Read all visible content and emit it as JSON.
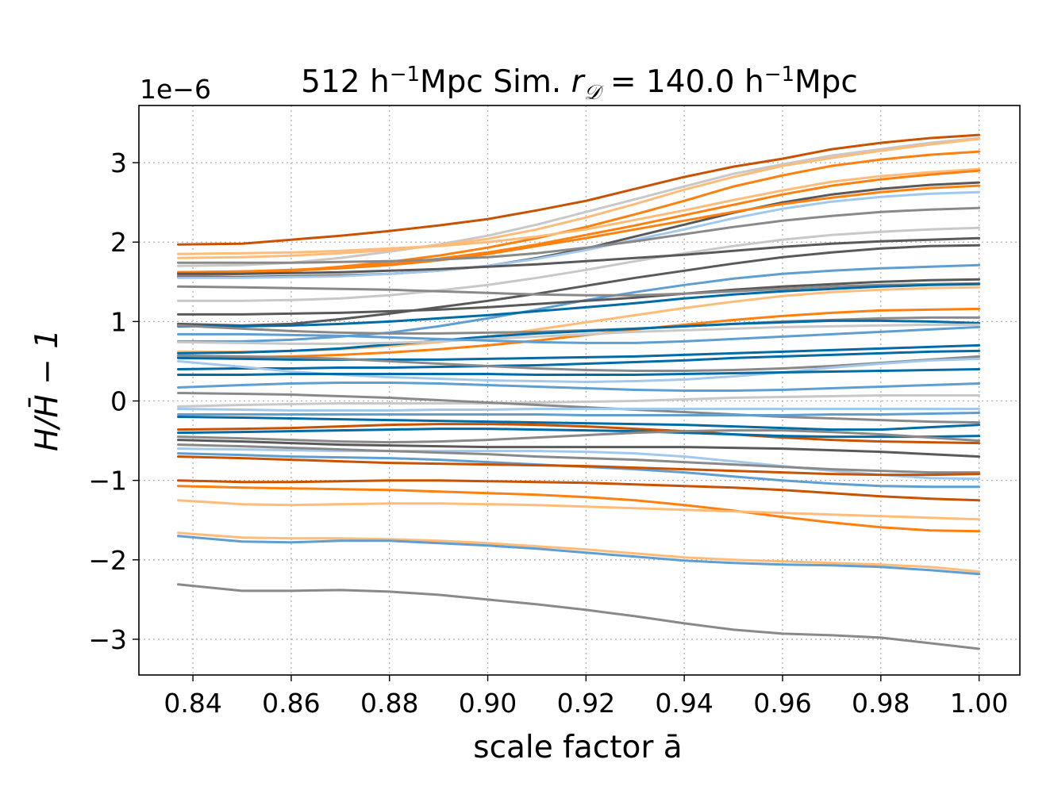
{
  "chart_data": {
    "type": "line",
    "title": {
      "prefix": "512 h",
      "sup1": "−1",
      "mid": "Mpc Sim. ",
      "r": "r",
      "sub": "𝒟",
      "eq": " = 140.0 h",
      "sup2": "−1",
      "suffix": "Mpc"
    },
    "xlabel": "scale factor ā",
    "ylabel": "H/H̄ − 1",
    "y_offset_label": "1e−6",
    "xlim": [
      0.829,
      1.0083
    ],
    "ylim": [
      -3.45,
      3.72
    ],
    "grid": true,
    "x": [
      0.837,
      0.85,
      0.86,
      0.87,
      0.88,
      0.89,
      0.9,
      0.91,
      0.92,
      0.93,
      0.94,
      0.95,
      0.96,
      0.97,
      0.98,
      0.99,
      1.0
    ],
    "xticks": [
      {
        "v": 0.84,
        "label": "0.84"
      },
      {
        "v": 0.86,
        "label": "0.86"
      },
      {
        "v": 0.88,
        "label": "0.88"
      },
      {
        "v": 0.9,
        "label": "0.90"
      },
      {
        "v": 0.92,
        "label": "0.92"
      },
      {
        "v": 0.94,
        "label": "0.94"
      },
      {
        "v": 0.96,
        "label": "0.96"
      },
      {
        "v": 0.98,
        "label": "0.98"
      },
      {
        "v": 1.0,
        "label": "1.00"
      }
    ],
    "yticks": [
      {
        "v": -3,
        "label": "−3"
      },
      {
        "v": -2,
        "label": "−2"
      },
      {
        "v": -1,
        "label": "−1"
      },
      {
        "v": 0,
        "label": "0"
      },
      {
        "v": 1,
        "label": "1"
      },
      {
        "v": 2,
        "label": "2"
      },
      {
        "v": 3,
        "label": "3"
      }
    ],
    "series": [
      {
        "name": "s01",
        "color": "#c85200",
        "values": [
          1.97,
          1.98,
          2.03,
          2.08,
          2.14,
          2.21,
          2.29,
          2.4,
          2.52,
          2.67,
          2.82,
          2.95,
          3.05,
          3.17,
          3.25,
          3.31,
          3.35
        ]
      },
      {
        "name": "s02",
        "color": "#c8c8c8",
        "values": [
          1.7,
          1.71,
          1.74,
          1.8,
          1.88,
          1.97,
          2.08,
          2.22,
          2.38,
          2.54,
          2.7,
          2.86,
          2.98,
          3.09,
          3.17,
          3.25,
          3.31
        ]
      },
      {
        "name": "s03",
        "color": "#ffbc79",
        "values": [
          1.8,
          1.81,
          1.83,
          1.86,
          1.9,
          1.96,
          2.04,
          2.16,
          2.31,
          2.48,
          2.66,
          2.82,
          2.96,
          3.06,
          3.15,
          3.23,
          3.3
        ]
      },
      {
        "name": "s04",
        "color": "#ff800e",
        "values": [
          1.58,
          1.6,
          1.64,
          1.69,
          1.75,
          1.83,
          1.93,
          2.05,
          2.19,
          2.35,
          2.52,
          2.7,
          2.84,
          2.96,
          3.04,
          3.1,
          3.14
        ]
      },
      {
        "name": "s05",
        "color": "#ffbc79",
        "values": [
          1.85,
          1.86,
          1.87,
          1.89,
          1.92,
          1.95,
          2.0,
          2.07,
          2.16,
          2.28,
          2.4,
          2.53,
          2.65,
          2.76,
          2.83,
          2.88,
          2.92
        ]
      },
      {
        "name": "s06",
        "color": "#ff800e",
        "values": [
          1.62,
          1.63,
          1.65,
          1.68,
          1.72,
          1.79,
          1.87,
          1.97,
          2.09,
          2.21,
          2.34,
          2.47,
          2.6,
          2.71,
          2.79,
          2.85,
          2.9
        ]
      },
      {
        "name": "s07",
        "color": "#595959",
        "values": [
          1.56,
          1.56,
          1.57,
          1.58,
          1.6,
          1.64,
          1.7,
          1.8,
          1.92,
          2.07,
          2.22,
          2.37,
          2.5,
          2.6,
          2.67,
          2.72,
          2.75
        ]
      },
      {
        "name": "s08",
        "color": "#ff800e",
        "values": [
          1.62,
          1.63,
          1.64,
          1.67,
          1.71,
          1.77,
          1.85,
          1.95,
          2.05,
          2.16,
          2.27,
          2.38,
          2.48,
          2.56,
          2.63,
          2.68,
          2.71
        ]
      },
      {
        "name": "s09",
        "color": "#a2c8ec",
        "values": [
          1.55,
          1.55,
          1.56,
          1.57,
          1.6,
          1.64,
          1.7,
          1.79,
          1.9,
          2.03,
          2.16,
          2.3,
          2.42,
          2.51,
          2.57,
          2.61,
          2.63
        ]
      },
      {
        "name": "s10",
        "color": "#898989",
        "values": [
          1.74,
          1.74,
          1.74,
          1.75,
          1.76,
          1.78,
          1.81,
          1.86,
          1.93,
          2.01,
          2.1,
          2.19,
          2.27,
          2.33,
          2.38,
          2.41,
          2.43
        ]
      },
      {
        "name": "s11",
        "color": "#c8c8c8",
        "values": [
          1.26,
          1.26,
          1.27,
          1.29,
          1.33,
          1.39,
          1.46,
          1.55,
          1.65,
          1.76,
          1.86,
          1.95,
          2.03,
          2.09,
          2.13,
          2.16,
          2.18
        ]
      },
      {
        "name": "s12",
        "color": "#595959",
        "values": [
          1.6,
          1.6,
          1.61,
          1.62,
          1.64,
          1.66,
          1.69,
          1.72,
          1.76,
          1.8,
          1.84,
          1.89,
          1.94,
          1.98,
          2.01,
          2.03,
          2.05
        ]
      },
      {
        "name": "s13",
        "color": "#595959",
        "values": [
          0.97,
          0.95,
          0.97,
          1.03,
          1.1,
          1.18,
          1.26,
          1.35,
          1.45,
          1.55,
          1.64,
          1.73,
          1.81,
          1.87,
          1.92,
          1.95,
          1.96
        ]
      },
      {
        "name": "s14",
        "color": "#5f9ed1",
        "values": [
          0.75,
          0.75,
          0.77,
          0.81,
          0.86,
          0.94,
          1.04,
          1.15,
          1.27,
          1.37,
          1.46,
          1.54,
          1.6,
          1.64,
          1.67,
          1.69,
          1.71
        ]
      },
      {
        "name": "s15",
        "color": "#595959",
        "values": [
          1.09,
          1.09,
          1.1,
          1.11,
          1.13,
          1.15,
          1.18,
          1.22,
          1.26,
          1.3,
          1.35,
          1.4,
          1.44,
          1.47,
          1.5,
          1.52,
          1.53
        ]
      },
      {
        "name": "s16",
        "color": "#898989",
        "values": [
          1.44,
          1.43,
          1.42,
          1.41,
          1.4,
          1.38,
          1.36,
          1.34,
          1.33,
          1.33,
          1.35,
          1.38,
          1.41,
          1.44,
          1.46,
          1.47,
          1.48
        ]
      },
      {
        "name": "s17",
        "color": "#006ba4",
        "values": [
          0.94,
          0.94,
          0.95,
          0.97,
          1.0,
          1.04,
          1.08,
          1.13,
          1.18,
          1.23,
          1.29,
          1.34,
          1.38,
          1.41,
          1.44,
          1.46,
          1.47
        ]
      },
      {
        "name": "s18",
        "color": "#ffbc79",
        "values": [
          0.62,
          0.62,
          0.63,
          0.65,
          0.69,
          0.74,
          0.81,
          0.9,
          0.99,
          1.08,
          1.17,
          1.25,
          1.32,
          1.37,
          1.4,
          1.42,
          1.43
        ]
      },
      {
        "name": "s19",
        "color": "#ff800e",
        "values": [
          0.55,
          0.55,
          0.56,
          0.58,
          0.61,
          0.65,
          0.7,
          0.76,
          0.83,
          0.9,
          0.96,
          1.02,
          1.07,
          1.11,
          1.14,
          1.15,
          1.16
        ]
      },
      {
        "name": "s20",
        "color": "#898989",
        "values": [
          0.95,
          0.91,
          0.88,
          0.86,
          0.85,
          0.85,
          0.86,
          0.87,
          0.89,
          0.91,
          0.94,
          0.97,
          1.0,
          1.02,
          1.04,
          1.05,
          1.05
        ]
      },
      {
        "name": "s21",
        "color": "#006ba4",
        "values": [
          0.6,
          0.61,
          0.63,
          0.66,
          0.71,
          0.76,
          0.81,
          0.85,
          0.88,
          0.91,
          0.94,
          0.97,
          0.99,
          1.01,
          1.01,
          1.0,
          0.98
        ]
      },
      {
        "name": "s22",
        "color": "#c8c8c8",
        "values": [
          0.74,
          0.73,
          0.72,
          0.72,
          0.73,
          0.75,
          0.78,
          0.81,
          0.84,
          0.87,
          0.89,
          0.91,
          0.93,
          0.94,
          0.95,
          0.96,
          0.96
        ]
      },
      {
        "name": "s23",
        "color": "#5f9ed1",
        "values": [
          0.84,
          0.84,
          0.83,
          0.82,
          0.8,
          0.78,
          0.76,
          0.74,
          0.73,
          0.73,
          0.75,
          0.78,
          0.81,
          0.84,
          0.87,
          0.9,
          0.93
        ]
      },
      {
        "name": "s24",
        "color": "#006ba4",
        "values": [
          0.54,
          0.53,
          0.52,
          0.52,
          0.52,
          0.52,
          0.53,
          0.54,
          0.55,
          0.56,
          0.58,
          0.6,
          0.62,
          0.64,
          0.66,
          0.68,
          0.7
        ]
      },
      {
        "name": "s25",
        "color": "#006ba4",
        "values": [
          0.4,
          0.41,
          0.41,
          0.42,
          0.42,
          0.43,
          0.44,
          0.45,
          0.47,
          0.49,
          0.51,
          0.54,
          0.56,
          0.58,
          0.6,
          0.62,
          0.63
        ]
      },
      {
        "name": "s26",
        "color": "#898989",
        "values": [
          0.57,
          0.56,
          0.55,
          0.53,
          0.5,
          0.47,
          0.44,
          0.41,
          0.39,
          0.38,
          0.38,
          0.39,
          0.41,
          0.44,
          0.48,
          0.52,
          0.56
        ]
      },
      {
        "name": "s27",
        "color": "#a2c8ec",
        "values": [
          0.5,
          0.43,
          0.37,
          0.33,
          0.3,
          0.28,
          0.26,
          0.25,
          0.24,
          0.25,
          0.27,
          0.31,
          0.36,
          0.42,
          0.47,
          0.51,
          0.53
        ]
      },
      {
        "name": "s28",
        "color": "#006ba4",
        "values": [
          0.33,
          0.33,
          0.34,
          0.34,
          0.34,
          0.34,
          0.34,
          0.33,
          0.33,
          0.33,
          0.34,
          0.35,
          0.36,
          0.37,
          0.38,
          0.39,
          0.4
        ]
      },
      {
        "name": "s29",
        "color": "#5f9ed1",
        "values": [
          0.17,
          0.2,
          0.22,
          0.23,
          0.23,
          0.22,
          0.2,
          0.18,
          0.16,
          0.14,
          0.13,
          0.13,
          0.14,
          0.16,
          0.18,
          0.2,
          0.22
        ]
      },
      {
        "name": "s30",
        "color": "#c8c8c8",
        "values": [
          -0.07,
          -0.05,
          -0.04,
          -0.03,
          -0.03,
          -0.03,
          -0.03,
          -0.02,
          -0.01,
          0.0,
          0.02,
          0.04,
          0.05,
          0.06,
          0.07,
          0.07,
          0.07
        ]
      },
      {
        "name": "s31",
        "color": "#898989",
        "values": [
          0.1,
          0.09,
          0.08,
          0.06,
          0.04,
          0.01,
          -0.02,
          -0.05,
          -0.08,
          -0.11,
          -0.14,
          -0.17,
          -0.2,
          -0.22,
          -0.24,
          -0.26,
          -0.27
        ]
      },
      {
        "name": "s32",
        "color": "#a2c8ec",
        "values": [
          -0.1,
          -0.11,
          -0.12,
          -0.12,
          -0.12,
          -0.11,
          -0.11,
          -0.1,
          -0.1,
          -0.1,
          -0.1,
          -0.1,
          -0.1,
          -0.1,
          -0.1,
          -0.1,
          -0.1
        ]
      },
      {
        "name": "s33",
        "color": "#5f9ed1",
        "values": [
          -0.17,
          -0.17,
          -0.17,
          -0.17,
          -0.17,
          -0.17,
          -0.17,
          -0.17,
          -0.18,
          -0.18,
          -0.18,
          -0.18,
          -0.18,
          -0.17,
          -0.17,
          -0.16,
          -0.15
        ]
      },
      {
        "name": "s34",
        "color": "#006ba4",
        "values": [
          -0.2,
          -0.21,
          -0.22,
          -0.23,
          -0.24,
          -0.25,
          -0.26,
          -0.27,
          -0.28,
          -0.29,
          -0.3,
          -0.32,
          -0.34,
          -0.36,
          -0.36,
          -0.33,
          -0.3
        ]
      },
      {
        "name": "s35",
        "color": "#c85200",
        "values": [
          -0.36,
          -0.35,
          -0.34,
          -0.32,
          -0.3,
          -0.29,
          -0.29,
          -0.3,
          -0.32,
          -0.35,
          -0.38,
          -0.42,
          -0.46,
          -0.49,
          -0.51,
          -0.52,
          -0.53
        ]
      },
      {
        "name": "s36",
        "color": "#006ba4",
        "values": [
          -0.4,
          -0.39,
          -0.38,
          -0.37,
          -0.36,
          -0.35,
          -0.35,
          -0.36,
          -0.37,
          -0.38,
          -0.4,
          -0.42,
          -0.44,
          -0.45,
          -0.45,
          -0.45,
          -0.44
        ]
      },
      {
        "name": "s37",
        "color": "#898989",
        "values": [
          -0.45,
          -0.47,
          -0.49,
          -0.51,
          -0.52,
          -0.51,
          -0.49,
          -0.46,
          -0.43,
          -0.4,
          -0.38,
          -0.37,
          -0.37,
          -0.39,
          -0.42,
          -0.46,
          -0.5
        ]
      },
      {
        "name": "s38",
        "color": "#595959",
        "values": [
          -0.49,
          -0.51,
          -0.53,
          -0.55,
          -0.56,
          -0.57,
          -0.58,
          -0.58,
          -0.58,
          -0.58,
          -0.58,
          -0.59,
          -0.6,
          -0.62,
          -0.64,
          -0.67,
          -0.7
        ]
      },
      {
        "name": "s39",
        "color": "#a2c8ec",
        "values": [
          -0.6,
          -0.61,
          -0.62,
          -0.63,
          -0.63,
          -0.63,
          -0.63,
          -0.63,
          -0.64,
          -0.66,
          -0.7,
          -0.76,
          -0.82,
          -0.88,
          -0.93,
          -0.97,
          -0.98
        ]
      },
      {
        "name": "s40",
        "color": "#898989",
        "values": [
          -0.55,
          -0.57,
          -0.59,
          -0.61,
          -0.63,
          -0.65,
          -0.67,
          -0.7,
          -0.72,
          -0.74,
          -0.77,
          -0.8,
          -0.83,
          -0.86,
          -0.88,
          -0.9,
          -0.9
        ]
      },
      {
        "name": "s41",
        "color": "#5f9ed1",
        "values": [
          -0.66,
          -0.68,
          -0.7,
          -0.71,
          -0.72,
          -0.74,
          -0.77,
          -0.8,
          -0.83,
          -0.86,
          -0.9,
          -0.95,
          -1.0,
          -1.04,
          -1.07,
          -1.08,
          -1.08
        ]
      },
      {
        "name": "s42",
        "color": "#c85200",
        "values": [
          -0.7,
          -0.72,
          -0.74,
          -0.76,
          -0.78,
          -0.79,
          -0.8,
          -0.81,
          -0.82,
          -0.84,
          -0.86,
          -0.88,
          -0.9,
          -0.92,
          -0.93,
          -0.93,
          -0.92
        ]
      },
      {
        "name": "s43",
        "color": "#c85200",
        "values": [
          -1.0,
          -1.02,
          -1.02,
          -1.01,
          -1.0,
          -1.0,
          -1.01,
          -1.02,
          -1.03,
          -1.05,
          -1.07,
          -1.09,
          -1.12,
          -1.16,
          -1.2,
          -1.23,
          -1.25
        ]
      },
      {
        "name": "s44",
        "color": "#ff800e",
        "values": [
          -1.07,
          -1.09,
          -1.1,
          -1.11,
          -1.12,
          -1.14,
          -1.16,
          -1.18,
          -1.21,
          -1.25,
          -1.31,
          -1.38,
          -1.46,
          -1.53,
          -1.59,
          -1.63,
          -1.64
        ]
      },
      {
        "name": "s45",
        "color": "#ffbc79",
        "values": [
          -1.25,
          -1.3,
          -1.31,
          -1.3,
          -1.29,
          -1.29,
          -1.3,
          -1.31,
          -1.33,
          -1.35,
          -1.37,
          -1.39,
          -1.41,
          -1.43,
          -1.45,
          -1.47,
          -1.49
        ]
      },
      {
        "name": "s46",
        "color": "#ffbc79",
        "values": [
          -1.66,
          -1.72,
          -1.73,
          -1.73,
          -1.74,
          -1.76,
          -1.79,
          -1.83,
          -1.87,
          -1.92,
          -1.97,
          -2.0,
          -2.02,
          -2.04,
          -2.06,
          -2.09,
          -2.15
        ]
      },
      {
        "name": "s47",
        "color": "#5f9ed1",
        "values": [
          -1.7,
          -1.77,
          -1.78,
          -1.76,
          -1.76,
          -1.79,
          -1.82,
          -1.86,
          -1.91,
          -1.96,
          -2.01,
          -2.04,
          -2.06,
          -2.07,
          -2.09,
          -2.13,
          -2.18
        ]
      },
      {
        "name": "s48",
        "color": "#898989",
        "values": [
          -2.31,
          -2.39,
          -2.39,
          -2.38,
          -2.4,
          -2.44,
          -2.5,
          -2.56,
          -2.63,
          -2.71,
          -2.8,
          -2.88,
          -2.93,
          -2.95,
          -2.98,
          -3.05,
          -3.12
        ]
      }
    ]
  }
}
